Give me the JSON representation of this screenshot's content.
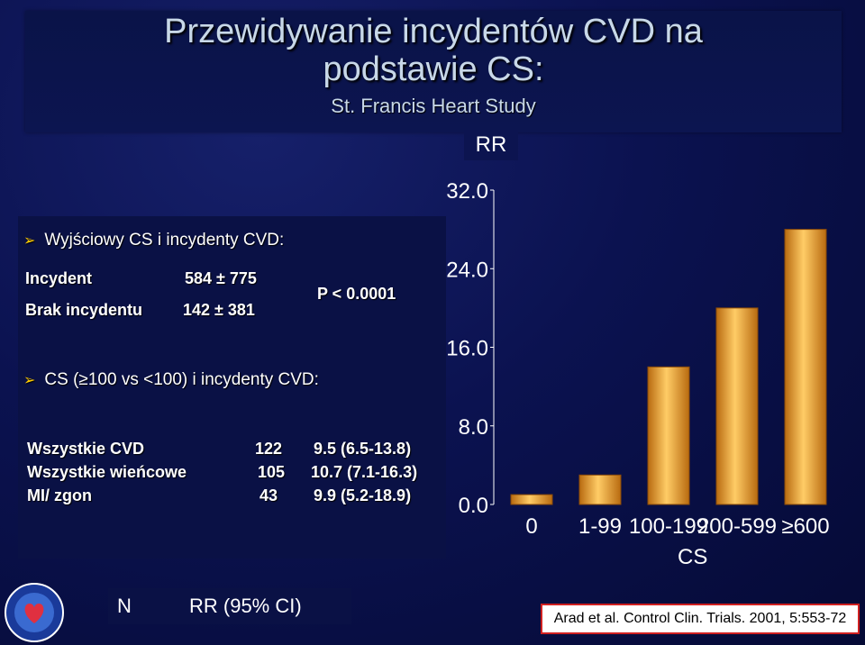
{
  "slide": {
    "title_line1": "Przewidywanie incydentów CVD na",
    "title_line2": "podstawie CS:",
    "subtitle": "St. Francis Heart Study"
  },
  "section1": {
    "heading": "Wyjściowy CS i incydenty CVD:",
    "rows": [
      {
        "label": "Incydent",
        "value": "584 ± 775"
      },
      {
        "label": "Brak incydentu",
        "value": "142 ± 381"
      }
    ],
    "p_value": "P < 0.0001"
  },
  "section2": {
    "heading": "CS (≥100 vs <100) i incydenty CVD:",
    "rows": [
      {
        "label": "Wszystkie CVD",
        "n": "122",
        "rr": "9.5 (6.5-13.8)"
      },
      {
        "label": "Wszystkie wieńcowe",
        "n": "105",
        "rr": "10.7 (7.1-16.3)"
      },
      {
        "label": "MI/ zgon",
        "n": "43",
        "rr": "9.9 (5.2-18.9)"
      }
    ]
  },
  "legend": {
    "n": "N",
    "rr": "RR (95% CI)"
  },
  "citation": "Arad et al.  Control Clin. Trials. 2001, 5:553-72",
  "colors": {
    "bar_top": "#ffcc66",
    "bar_bottom": "#b86a10",
    "accent": "#ffcc00"
  },
  "chart_data": {
    "type": "bar",
    "title": "RR",
    "xlabel": "CS",
    "ylabel": "RR",
    "categories": [
      "0",
      "1-99",
      "100-199",
      "200-599",
      "≥600"
    ],
    "values": [
      1.0,
      3.0,
      14.0,
      20.0,
      28.0
    ],
    "ylim": [
      0,
      32
    ],
    "yticks": [
      "32.0",
      "24.0",
      "16.0",
      "8.0",
      "0.0"
    ],
    "ytick_values": [
      32,
      24,
      16,
      8,
      0
    ],
    "grid": false
  }
}
